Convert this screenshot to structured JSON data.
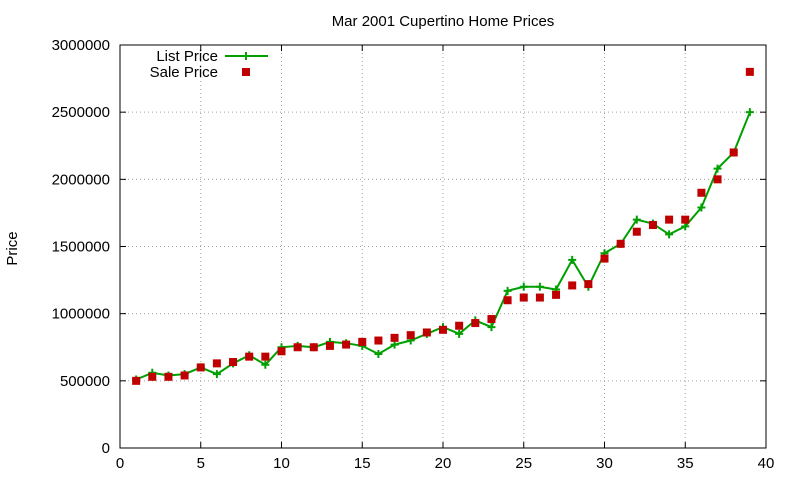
{
  "chart_data": {
    "type": "line",
    "title": "Mar 2001 Cupertino Home Prices",
    "xlabel": "",
    "ylabel": "Price",
    "xlim": [
      0,
      40
    ],
    "ylim": [
      0,
      3000000
    ],
    "x_ticks": [
      0,
      5,
      10,
      15,
      20,
      25,
      30,
      35,
      40
    ],
    "y_ticks": [
      0,
      500000,
      1000000,
      1500000,
      2000000,
      2500000,
      3000000
    ],
    "grid": true,
    "legend_position": "top-left",
    "series": [
      {
        "name": "List Price",
        "style": "line-plus",
        "color": "#00a000",
        "x": [
          1,
          2,
          3,
          4,
          5,
          6,
          7,
          8,
          9,
          10,
          11,
          12,
          13,
          14,
          15,
          16,
          17,
          18,
          19,
          20,
          21,
          22,
          23,
          24,
          25,
          26,
          27,
          28,
          29,
          30,
          31,
          32,
          33,
          34,
          35,
          36,
          37,
          38,
          39
        ],
        "y": [
          510000,
          560000,
          540000,
          550000,
          600000,
          550000,
          630000,
          690000,
          620000,
          750000,
          760000,
          750000,
          790000,
          780000,
          760000,
          700000,
          770000,
          800000,
          850000,
          900000,
          850000,
          950000,
          900000,
          1170000,
          1200000,
          1200000,
          1180000,
          1400000,
          1200000,
          1450000,
          1520000,
          1700000,
          1670000,
          1590000,
          1650000,
          1790000,
          2080000,
          2200000,
          2500000
        ]
      },
      {
        "name": "Sale Price",
        "style": "square-points",
        "color": "#c00000",
        "x": [
          1,
          2,
          3,
          4,
          5,
          6,
          7,
          8,
          9,
          10,
          11,
          12,
          13,
          14,
          15,
          16,
          17,
          18,
          19,
          20,
          21,
          22,
          23,
          24,
          25,
          26,
          27,
          28,
          29,
          30,
          31,
          32,
          33,
          34,
          35,
          36,
          37,
          38,
          39
        ],
        "y": [
          500000,
          530000,
          530000,
          540000,
          600000,
          630000,
          640000,
          680000,
          680000,
          720000,
          750000,
          750000,
          760000,
          770000,
          790000,
          800000,
          820000,
          840000,
          860000,
          880000,
          910000,
          930000,
          960000,
          1100000,
          1120000,
          1120000,
          1140000,
          1210000,
          1220000,
          1410000,
          1520000,
          1610000,
          1660000,
          1700000,
          1700000,
          1900000,
          2000000,
          2200000,
          2800000
        ]
      }
    ]
  }
}
